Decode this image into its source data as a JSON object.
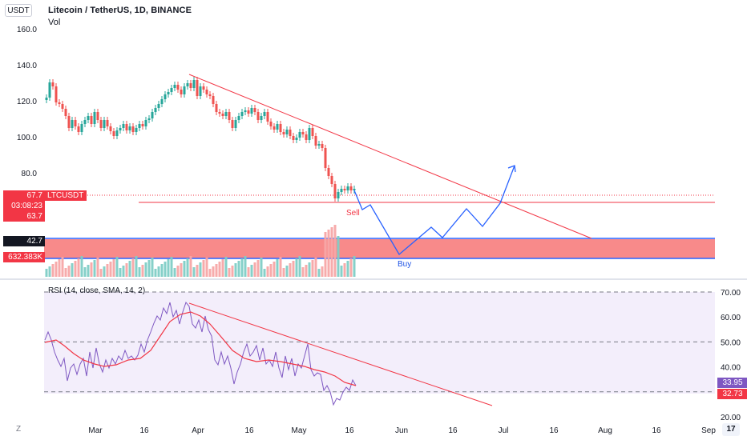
{
  "header": {
    "currency_badge": "USDT",
    "title": "Litecoin / TetherUS, 1D, BINANCE",
    "volume_label": "Vol"
  },
  "price_axis": {
    "ticks": [
      "160.0",
      "140.0",
      "120.0",
      "100.0",
      "80.0"
    ]
  },
  "price_tags": {
    "last_price": "67.7",
    "symbol": "LTCUSDT",
    "countdown": "03:08:23",
    "line_price": "63.7",
    "box_price": "42.7",
    "volume_value": "632.383K"
  },
  "drawing_labels": {
    "sell": "Sell",
    "buy": "Buy"
  },
  "rsi": {
    "label": "RSI (14, close, SMA, 14, 2)",
    "ticks": [
      "70.00",
      "60.00",
      "50.00",
      "40.00",
      "20.00"
    ],
    "value_tag": "33.95",
    "sma_tag": "32.73"
  },
  "time_axis": {
    "ticks": [
      "Mar",
      "16",
      "Apr",
      "16",
      "May",
      "16",
      "Jun",
      "16",
      "Jul",
      "16",
      "Aug",
      "16",
      "Sep"
    ]
  },
  "footer": {
    "timezone_button": "Z",
    "logo": "17"
  },
  "colors": {
    "up": "#26a69a",
    "down": "#ef5350",
    "drawing_red": "#f23645",
    "drawing_blue": "#2962ff",
    "rsi_line": "#7e57c2",
    "rsi_fill": "#f3eefb",
    "rsi_sma": "#f23645",
    "sell_zone": "#f88a8a"
  }
}
